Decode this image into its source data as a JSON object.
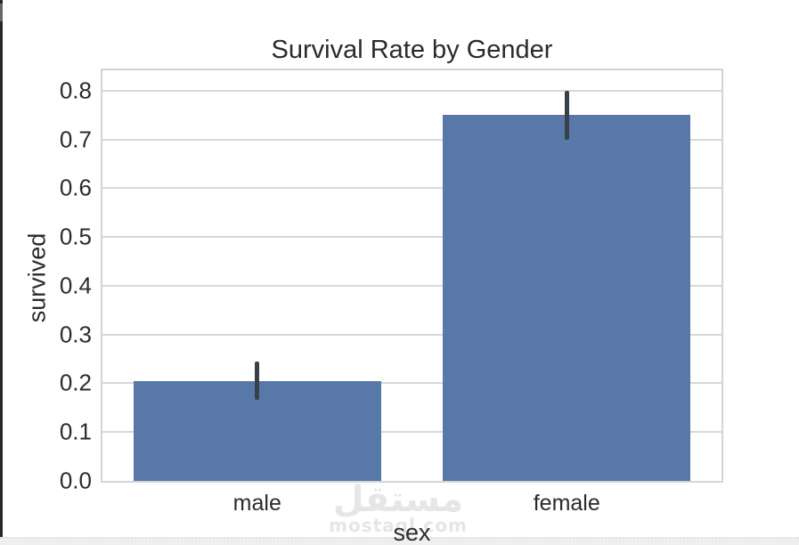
{
  "watermark": {
    "logo_text": "مستقل",
    "site_text": "mostaql.com",
    "color": "#e6e6e6"
  },
  "chart_data": {
    "type": "bar",
    "title": "Survival Rate by Gender",
    "xlabel": "sex",
    "ylabel": "survived",
    "categories": [
      "male",
      "female"
    ],
    "values": [
      0.205,
      0.75
    ],
    "error_bars": [
      [
        0.167,
        0.245
      ],
      [
        0.7,
        0.8
      ]
    ],
    "ytick_labels": [
      "0.0",
      "0.1",
      "0.2",
      "0.3",
      "0.4",
      "0.5",
      "0.6",
      "0.7",
      "0.8"
    ],
    "ylim": [
      0,
      0.842
    ],
    "bar_relative_width": 0.8,
    "grid": "horizontal",
    "legend_position": "none",
    "colors": {
      "bar": "#5878a8",
      "error_bar": "#3a4047",
      "grid": "#d8d8d8",
      "spine": "#d4d4d4",
      "text": "#2b2b2b",
      "watermark": "#e6e6e6"
    }
  }
}
